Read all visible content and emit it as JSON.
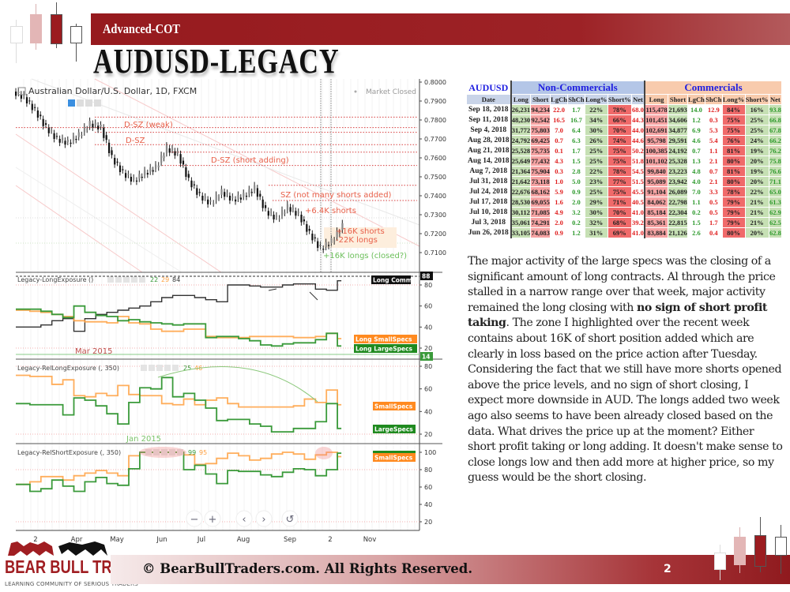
{
  "header": {
    "section": "Advanced-COT",
    "title": "AUDUSD-LEGACY"
  },
  "chart": {
    "symbol_title": "Australian Dollar/U.S. Dollar, 1D, FXCM",
    "market_status": "Market Closed",
    "price_axis": [
      "0.8000",
      "0.7900",
      "0.7800",
      "0.7700",
      "0.7600",
      "0.7500",
      "0.7400",
      "0.7300",
      "0.7200",
      "0.7100"
    ],
    "price_closes": [
      0.792,
      0.785,
      0.776,
      0.77,
      0.768,
      0.772,
      0.778,
      0.776,
      0.76,
      0.752,
      0.748,
      0.752,
      0.755,
      0.765,
      0.762,
      0.748,
      0.74,
      0.736,
      0.742,
      0.738,
      0.74,
      0.744,
      0.732,
      0.728,
      0.734,
      0.73,
      0.72,
      0.712,
      0.716,
      0.724
    ],
    "zone_levels": [
      0.7815,
      0.776,
      0.7735,
      0.767,
      0.763,
      0.756,
      0.7455,
      0.7375
    ],
    "annotations": {
      "dsz_weak": "D-SZ (weak)",
      "dsz": "D-SZ",
      "dsz_short_adding": "D-SZ (short adding)",
      "sz_not_many": "SZ (not many shorts added)",
      "shorts_6_4k": "+6.4K shorts",
      "shorts_16k": "+16K shorts",
      "longs_22k": "-22K longs",
      "longs_16k_closed": "+16K longs (closed?)"
    },
    "colors": {
      "annotation_red": "#e8604a",
      "annotation_green": "#6bbf5a",
      "comm": "#333333",
      "small": "#ffa040",
      "large": "#3a9a3a"
    },
    "panes": [
      {
        "title": "Legacy-LongExposure ()",
        "values": [
          "22",
          "29",
          "84"
        ],
        "axis": [
          "80",
          "60",
          "40",
          "20"
        ],
        "top_marker": "88",
        "bottom_marker": "14",
        "labels": {
          "comm": "Long Comm",
          "small": "Long SmallSpecs",
          "large": "Long LargeSpecs"
        },
        "note": "Mar 2015",
        "series": {
          "comm": [
            40,
            40,
            42,
            46,
            48,
            36,
            48,
            52,
            54,
            56,
            58,
            60,
            64,
            68,
            70,
            70,
            68,
            66,
            64,
            80,
            80,
            79,
            78,
            78,
            80,
            81,
            81,
            76,
            75,
            84
          ],
          "small": [
            56,
            55,
            54,
            52,
            50,
            46,
            45,
            45,
            44,
            50,
            44,
            43,
            38,
            36,
            36,
            38,
            38,
            31,
            30,
            30,
            30,
            31,
            31,
            31,
            31,
            30,
            30,
            31,
            34,
            29
          ],
          "large": [
            57,
            57,
            55,
            52,
            49,
            60,
            54,
            51,
            50,
            46,
            47,
            45,
            44,
            43,
            42,
            43,
            43,
            30,
            31,
            31,
            29,
            27,
            23,
            22,
            24,
            25,
            25,
            28,
            34,
            22
          ]
        }
      },
      {
        "title": "Legacy-RelLongExposure (, 350)",
        "values": [
          "25",
          "46"
        ],
        "axis": [
          "80",
          "60",
          "40",
          "20"
        ],
        "labels": {
          "small": "SmallSpecs",
          "large": "LargeSpecs"
        },
        "note": "Jan 2015",
        "series": {
          "small": [
            72,
            71,
            71,
            64,
            68,
            54,
            53,
            56,
            54,
            63,
            55,
            54,
            54,
            47,
            46,
            51,
            46,
            50,
            52,
            47,
            44,
            44,
            44,
            44,
            44,
            45,
            51,
            48,
            59,
            46
          ],
          "large": [
            47,
            46,
            46,
            46,
            37,
            52,
            50,
            45,
            38,
            29,
            48,
            61,
            60,
            70,
            53,
            56,
            50,
            43,
            32,
            33,
            33,
            29,
            27,
            22,
            22,
            25,
            25,
            31,
            47,
            25
          ]
        }
      },
      {
        "title": "Legacy-RelShortExposure (, 350)",
        "values": [
          "99",
          "95"
        ],
        "axis": [
          "100",
          "80",
          "60",
          "40",
          "20"
        ],
        "labels": {
          "small": "SmallSpecs"
        },
        "series": {
          "small": [
            63,
            66,
            72,
            72,
            68,
            73,
            76,
            79,
            76,
            73,
            96,
            100,
            100,
            100,
            100,
            97,
            86,
            87,
            93,
            99,
            96,
            91,
            93,
            98,
            100,
            98,
            92,
            97,
            100,
            95
          ],
          "large": [
            63,
            55,
            58,
            68,
            61,
            55,
            66,
            71,
            64,
            62,
            81,
            100,
            100,
            100,
            100,
            80,
            85,
            75,
            64,
            79,
            78,
            78,
            74,
            72,
            77,
            81,
            80,
            73,
            80,
            99
          ]
        }
      }
    ],
    "time_axis": [
      "2",
      "Apr",
      "May",
      "Jun",
      "Jul",
      "Aug",
      "Sep",
      "2",
      "Nov"
    ],
    "controls": {
      "zoom_out": "−",
      "zoom_in": "+",
      "back": "‹",
      "forward": "›",
      "reset": "↺"
    }
  },
  "table": {
    "title": "AUDUSD",
    "noncomm_title": "Non-Commercials",
    "comm_title": "Commercials",
    "columns": [
      "Date",
      "Long",
      "Short",
      "LgCh",
      "ShCh",
      "Long%",
      "Short%",
      "Net",
      "Long",
      "Short",
      "LgCh",
      "ShCh",
      "Long%",
      "Short%",
      "Net"
    ],
    "rows": [
      [
        "Sep 18, 2018",
        "26,231",
        "94,234",
        "22.0",
        "1.7",
        "22%",
        "78%",
        "68.0",
        "115,478",
        "21,693",
        "14.0",
        "12.9",
        "84%",
        "16%",
        "93.8"
      ],
      [
        "Sep 11, 2018",
        "48,230",
        "92,542",
        "16.5",
        "16.7",
        "34%",
        "66%",
        "44.3",
        "101,451",
        "34,606",
        "1.2",
        "0.3",
        "75%",
        "25%",
        "66.8"
      ],
      [
        "Sep 4, 2018",
        "31,772",
        "75,803",
        "7.0",
        "6.4",
        "30%",
        "70%",
        "44.0",
        "102,691",
        "34,877",
        "6.9",
        "5.3",
        "75%",
        "25%",
        "67.8"
      ],
      [
        "Aug 28, 2018",
        "24,792",
        "69,425",
        "0.7",
        "6.3",
        "26%",
        "74%",
        "44.6",
        "95,798",
        "29,591",
        "4.6",
        "5.4",
        "76%",
        "24%",
        "66.2"
      ],
      [
        "Aug 21, 2018",
        "25,528",
        "75,735",
        "0.1",
        "1.7",
        "25%",
        "75%",
        "50.2",
        "100,385",
        "24,192",
        "0.7",
        "1.1",
        "81%",
        "19%",
        "76.2"
      ],
      [
        "Aug 14, 2018",
        "25,649",
        "77,432",
        "4.3",
        "1.5",
        "25%",
        "75%",
        "51.8",
        "101,102",
        "25,328",
        "1.3",
        "2.1",
        "80%",
        "20%",
        "75.8"
      ],
      [
        "Aug 7, 2018",
        "21,364",
        "75,904",
        "0.3",
        "2.8",
        "22%",
        "78%",
        "54.5",
        "99,840",
        "23,223",
        "4.8",
        "0.7",
        "81%",
        "19%",
        "76.6"
      ],
      [
        "Jul 31, 2018",
        "21,642",
        "73,118",
        "1.0",
        "5.0",
        "23%",
        "77%",
        "51.5",
        "95,089",
        "23,942",
        "4.0",
        "2.1",
        "80%",
        "20%",
        "71.1"
      ],
      [
        "Jul 24, 2018",
        "22,676",
        "68,162",
        "5.9",
        "0.9",
        "25%",
        "75%",
        "45.5",
        "91,104",
        "26,089",
        "7.0",
        "3.3",
        "78%",
        "22%",
        "65.0"
      ],
      [
        "Jul 17, 2018",
        "28,530",
        "69,055",
        "1.6",
        "2.0",
        "29%",
        "71%",
        "40.5",
        "84,062",
        "22,798",
        "1.1",
        "0.5",
        "79%",
        "21%",
        "61.3"
      ],
      [
        "Jul 10, 2018",
        "30,112",
        "71,085",
        "4.9",
        "3.2",
        "30%",
        "70%",
        "41.0",
        "85,184",
        "22,304",
        "0.2",
        "0.5",
        "79%",
        "21%",
        "62.9"
      ],
      [
        "Jul 3, 2018",
        "35,061",
        "74,291",
        "2.0",
        "0.2",
        "32%",
        "68%",
        "39.2",
        "85,361",
        "22,815",
        "1.5",
        "1.7",
        "79%",
        "21%",
        "62.5"
      ],
      [
        "Jun 26, 2018",
        "33,105",
        "74,083",
        "0.9",
        "1.2",
        "31%",
        "69%",
        "41.0",
        "83,884",
        "21,126",
        "2.6",
        "0.4",
        "80%",
        "20%",
        "62.8"
      ]
    ]
  },
  "commentary": {
    "before_bold": "The major activity of the large specs was the closing of a significant amount of long contracts. Al through the price stalled in a narrow range over that week, major activity remained the long closing with ",
    "bold": "no sign of short profit taking",
    "after_bold": ".  The zone I highlighted over the recent week contains about 16K of short position added which are clearly in loss based on the price action after Tuesday. Considering the fact that we still have more shorts opened above the price levels, and no sign of short closing, I expect more downside in AUD. The longs added two week ago also seems to have been already closed based on the data. What drives the price up at the moment? Either short profit taking or long adding. It doesn't make sense to close longs low and then add more at higher price, so my guess would be the short closing."
  },
  "footer": {
    "logo_name": "BEAR BULL TRADERS",
    "logo_tagline": "LEARNING COMMUNITY OF SERIOUS TRADERS",
    "copyright": "© BearBullTraders.com. All Rights Reserved.",
    "page_number": "2"
  }
}
